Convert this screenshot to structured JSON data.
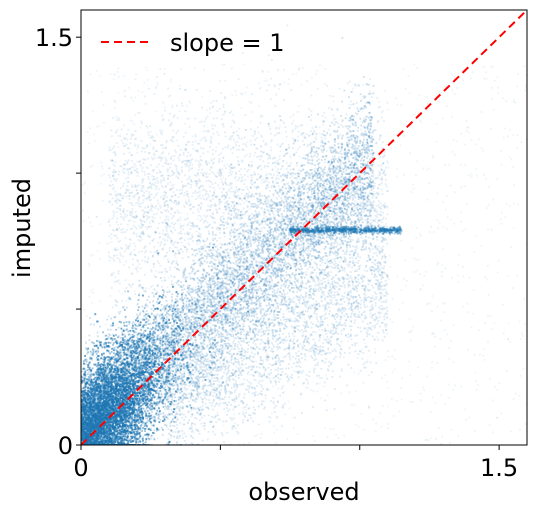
{
  "chart_data": {
    "type": "scatter",
    "xlabel": "observed",
    "ylabel": "imputed",
    "xlim": [
      0,
      1.6
    ],
    "ylim": [
      0,
      1.6
    ],
    "x_ticks": [
      {
        "value": 0,
        "label": "0"
      },
      {
        "value": 0.5,
        "label": ""
      },
      {
        "value": 1.0,
        "label": ""
      },
      {
        "value": 1.5,
        "label": "1.5"
      }
    ],
    "y_ticks": [
      {
        "value": 0,
        "label": "0"
      },
      {
        "value": 0.5,
        "label": ""
      },
      {
        "value": 1.0,
        "label": ""
      },
      {
        "value": 1.5,
        "label": "1.5"
      }
    ],
    "grid": false,
    "legend_position": "top-left",
    "reference_line": {
      "name": "slope = 1",
      "slope": 1,
      "intercept": 0,
      "color": "#ff0000",
      "style": "dashed"
    },
    "scatter_color": "#1f77b4",
    "scatter_opacity": 0.08,
    "point_density_note_regions": [
      {
        "x_range": [
          0.0,
          0.5
        ],
        "y_range": [
          0.0,
          0.6
        ]
      },
      {
        "x_range": [
          0.3,
          1.0
        ],
        "y_range": [
          0.3,
          1.0
        ]
      },
      {
        "x_range": [
          0.8,
          1.1
        ],
        "y_range": [
          0.78,
          0.8
        ]
      }
    ]
  }
}
